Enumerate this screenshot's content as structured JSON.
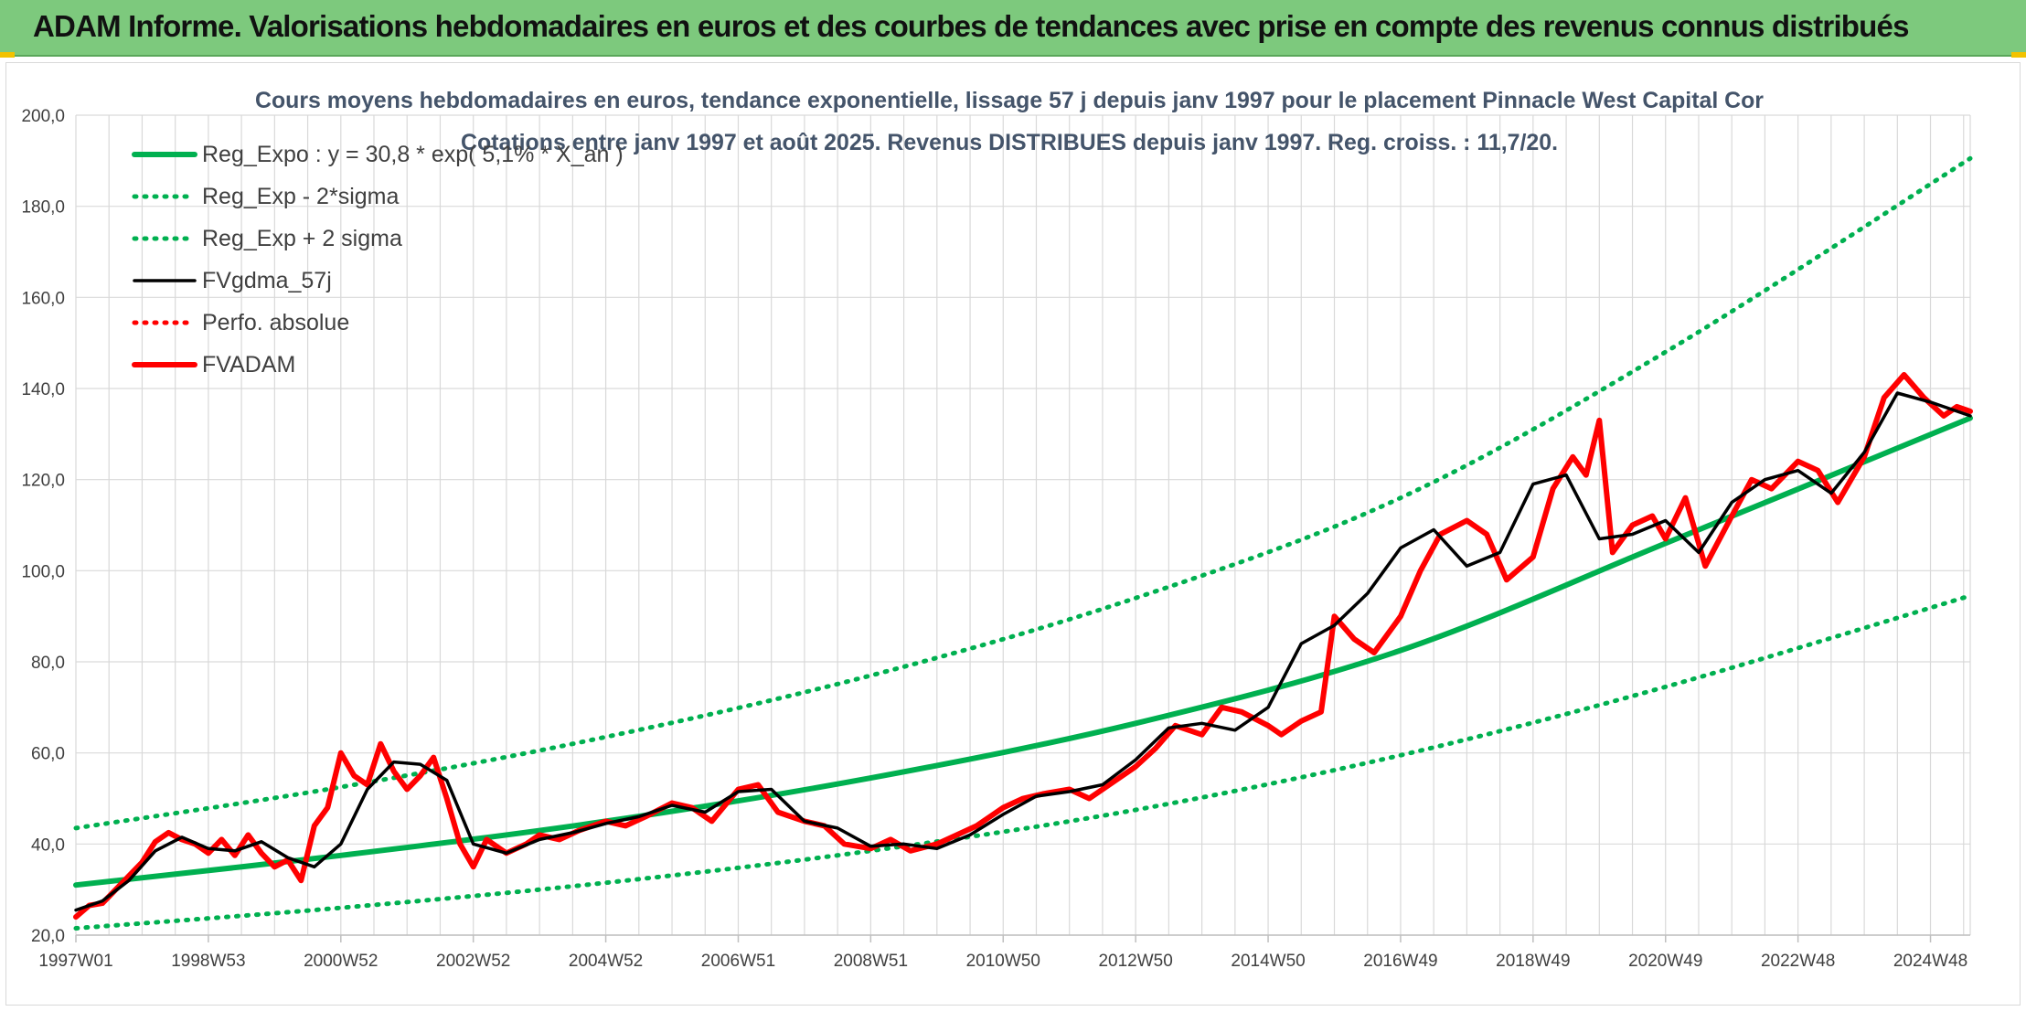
{
  "header": {
    "banner_title": "ADAM Informe. Valorisations hebdomadaires en euros et des courbes de tendances avec prise en compte des revenus connus distribués"
  },
  "colors": {
    "banner": "#7dc97d",
    "reg_expo": "#00b050",
    "fv_adam": "#ff0000",
    "fv_gdma": "#000000",
    "grid": "#d9d9d9",
    "title_text": "#44546a"
  },
  "chart_data": {
    "type": "line",
    "title": "Cours moyens hebdomadaires en euros, tendance exponentielle, lissage 57 j depuis janv 1997 pour le placement Pinnacle West Capital Cor",
    "subtitle": "Cotations entre janv 1997 et août 2025. Revenus DISTRIBUES depuis janv 1997. Reg. croiss. : 11,7/20.",
    "xlabel": "",
    "ylabel": "",
    "x_range": [
      1997.0,
      2025.6
    ],
    "ylim": [
      20,
      200
    ],
    "y_ticks": [
      20,
      40,
      60,
      80,
      100,
      120,
      140,
      160,
      180,
      200
    ],
    "y_tick_labels": [
      "20,0",
      "40,0",
      "60,0",
      "80,0",
      "100,0",
      "120,0",
      "140,0",
      "160,0",
      "180,0",
      "200,0"
    ],
    "x_ticks": [
      {
        "label": "1997W01",
        "x": 1997.0
      },
      {
        "label": "1998W53",
        "x": 1999.0
      },
      {
        "label": "2000W52",
        "x": 2001.0
      },
      {
        "label": "2002W52",
        "x": 2003.0
      },
      {
        "label": "2004W52",
        "x": 2005.0
      },
      {
        "label": "2006W51",
        "x": 2007.0
      },
      {
        "label": "2008W51",
        "x": 2009.0
      },
      {
        "label": "2010W50",
        "x": 2011.0
      },
      {
        "label": "2012W50",
        "x": 2013.0
      },
      {
        "label": "2014W50",
        "x": 2015.0
      },
      {
        "label": "2016W49",
        "x": 2017.0
      },
      {
        "label": "2018W49",
        "x": 2019.0
      },
      {
        "label": "2020W49",
        "x": 2021.0
      },
      {
        "label": "2022W48",
        "x": 2023.0
      },
      {
        "label": "2024W48",
        "x": 2025.0
      }
    ],
    "grid": true,
    "legend_position": "top-left",
    "series": [
      {
        "name": "Reg_Expo : y = 30,8 * exp( 5,1% *  X_an )",
        "style": "solid-thick",
        "color": "#00b050",
        "x": [
          1997.0,
          2001.0,
          2005.0,
          2009.0,
          2013.0,
          2017.0,
          2021.0,
          2025.6
        ],
        "y": [
          31.0,
          37.5,
          45.0,
          54.5,
          66.5,
          82.5,
          106.0,
          133.5
        ]
      },
      {
        "name": "Reg_Exp - 2*sigma",
        "style": "dotted",
        "color": "#00b050",
        "x": [
          1997.0,
          2001.0,
          2005.0,
          2009.0,
          2013.0,
          2017.0,
          2021.0,
          2025.6
        ],
        "y": [
          21.5,
          26.0,
          31.5,
          38.5,
          47.5,
          59.5,
          74.5,
          94.5
        ]
      },
      {
        "name": "Reg_Exp + 2 sigma",
        "style": "dotted",
        "color": "#00b050",
        "x": [
          1997.0,
          2001.0,
          2005.0,
          2009.0,
          2013.0,
          2017.0,
          2021.0,
          2025.6
        ],
        "y": [
          43.5,
          52.5,
          63.5,
          77.0,
          94.0,
          116.0,
          148.0,
          190.5
        ]
      },
      {
        "name": "FVgdma_57j",
        "style": "solid",
        "color": "#000000",
        "x": [
          1997.0,
          1997.4,
          1997.8,
          1998.2,
          1998.6,
          1999.0,
          1999.4,
          1999.8,
          2000.2,
          2000.6,
          2001.0,
          2001.4,
          2001.8,
          2002.2,
          2002.6,
          2003.0,
          2003.5,
          2004.0,
          2004.5,
          2005.0,
          2005.5,
          2006.0,
          2006.5,
          2007.0,
          2007.5,
          2008.0,
          2008.5,
          2009.0,
          2009.5,
          2010.0,
          2010.5,
          2011.0,
          2011.5,
          2012.0,
          2012.5,
          2013.0,
          2013.5,
          2014.0,
          2014.5,
          2015.0,
          2015.5,
          2016.0,
          2016.5,
          2017.0,
          2017.5,
          2018.0,
          2018.5,
          2019.0,
          2019.5,
          2020.0,
          2020.5,
          2021.0,
          2021.5,
          2022.0,
          2022.5,
          2023.0,
          2023.5,
          2024.0,
          2024.5,
          2025.0,
          2025.4,
          2025.6
        ],
        "y": [
          25.5,
          27.5,
          32.0,
          38.5,
          41.5,
          39.0,
          38.5,
          40.5,
          37.0,
          35.0,
          40.0,
          52.0,
          58.0,
          57.5,
          54.0,
          40.0,
          38.0,
          41.0,
          42.5,
          44.5,
          46.0,
          48.5,
          47.0,
          51.5,
          52.0,
          45.0,
          43.5,
          39.5,
          40.0,
          39.0,
          42.0,
          46.5,
          50.5,
          51.5,
          53.0,
          58.5,
          65.5,
          66.5,
          65.0,
          70.0,
          84.0,
          88.0,
          95.0,
          105.0,
          109.0,
          101.0,
          104.0,
          119.0,
          121.0,
          107.0,
          108.0,
          111.0,
          104.0,
          115.0,
          120.0,
          122.0,
          117.0,
          126.0,
          139.0,
          137.0,
          135.0,
          134.0
        ]
      },
      {
        "name": "Perfo. absolue",
        "style": "dotted",
        "color": "#ff0000",
        "x": [],
        "y": []
      },
      {
        "name": "FVADAM",
        "style": "solid-thick",
        "color": "#ff0000",
        "x": [
          1997.0,
          1997.2,
          1997.4,
          1997.6,
          1997.8,
          1998.0,
          1998.2,
          1998.4,
          1998.6,
          1998.8,
          1999.0,
          1999.2,
          1999.4,
          1999.6,
          1999.8,
          2000.0,
          2000.2,
          2000.4,
          2000.6,
          2000.8,
          2001.0,
          2001.2,
          2001.4,
          2001.6,
          2001.8,
          2002.0,
          2002.2,
          2002.4,
          2002.6,
          2002.8,
          2003.0,
          2003.2,
          2003.5,
          2003.8,
          2004.0,
          2004.3,
          2004.6,
          2005.0,
          2005.3,
          2005.6,
          2006.0,
          2006.3,
          2006.6,
          2007.0,
          2007.3,
          2007.6,
          2008.0,
          2008.3,
          2008.6,
          2009.0,
          2009.3,
          2009.6,
          2010.0,
          2010.3,
          2010.6,
          2011.0,
          2011.3,
          2011.6,
          2012.0,
          2012.3,
          2012.6,
          2013.0,
          2013.3,
          2013.6,
          2014.0,
          2014.3,
          2014.6,
          2015.0,
          2015.2,
          2015.5,
          2015.8,
          2016.0,
          2016.3,
          2016.6,
          2017.0,
          2017.3,
          2017.6,
          2018.0,
          2018.3,
          2018.6,
          2019.0,
          2019.3,
          2019.6,
          2019.8,
          2020.0,
          2020.2,
          2020.5,
          2020.8,
          2021.0,
          2021.3,
          2021.6,
          2022.0,
          2022.3,
          2022.6,
          2023.0,
          2023.3,
          2023.6,
          2024.0,
          2024.3,
          2024.6,
          2024.9,
          2025.2,
          2025.4,
          2025.6
        ],
        "y": [
          24.0,
          26.5,
          27.0,
          30.0,
          33.0,
          36.0,
          40.5,
          42.5,
          41.0,
          40.0,
          38.0,
          41.0,
          37.5,
          42.0,
          38.0,
          35.0,
          36.5,
          32.0,
          44.0,
          48.0,
          60.0,
          55.0,
          53.0,
          62.0,
          56.0,
          52.0,
          55.0,
          59.0,
          50.0,
          40.0,
          35.0,
          41.0,
          38.0,
          40.0,
          42.0,
          41.0,
          43.0,
          45.0,
          44.0,
          46.0,
          49.0,
          48.0,
          45.0,
          52.0,
          53.0,
          47.0,
          45.0,
          44.0,
          40.0,
          39.0,
          41.0,
          38.5,
          40.0,
          42.0,
          44.0,
          48.0,
          50.0,
          51.0,
          52.0,
          50.0,
          53.0,
          57.0,
          61.0,
          66.0,
          64.0,
          70.0,
          69.0,
          66.0,
          64.0,
          67.0,
          69.0,
          90.0,
          85.0,
          82.0,
          90.0,
          100.0,
          108.0,
          111.0,
          108.0,
          98.0,
          103.0,
          118.0,
          125.0,
          121.0,
          133.0,
          104.0,
          110.0,
          112.0,
          107.0,
          116.0,
          101.0,
          112.0,
          120.0,
          118.0,
          124.0,
          122.0,
          115.0,
          125.0,
          138.0,
          143.0,
          138.0,
          134.0,
          136.0,
          135.0
        ]
      }
    ]
  }
}
